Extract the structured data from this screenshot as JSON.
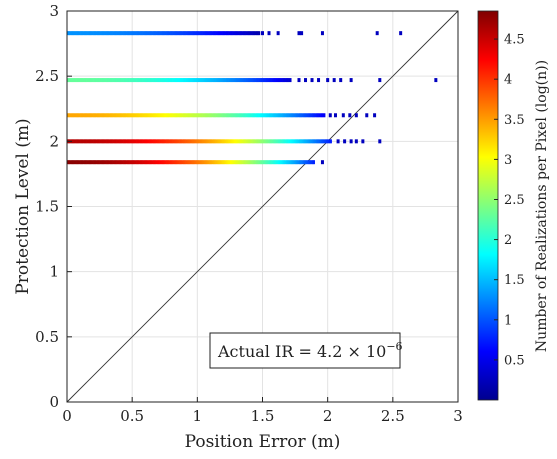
{
  "chart_data": {
    "type": "scatter",
    "xlabel": "Position Error (m)",
    "ylabel": "Protection Level (m)",
    "xlim": [
      0,
      3
    ],
    "ylim": [
      0,
      3
    ],
    "x_ticks": [
      "0",
      "0.5",
      "1",
      "1.5",
      "2",
      "2.5",
      "3"
    ],
    "y_ticks": [
      "0",
      "0.5",
      "1",
      "1.5",
      "2",
      "2.5",
      "3"
    ],
    "grid": true,
    "reference_line": {
      "x": [
        0,
        3
      ],
      "y": [
        0,
        3
      ]
    },
    "annotation": {
      "prefix": "Actual IR = 4.2 × 10",
      "exponent": "−6"
    },
    "colorbar": {
      "label": "Number of Realizations per Pixel (log(n))",
      "range": [
        0,
        4.85
      ],
      "ticks": [
        "0.5",
        "1",
        "1.5",
        "2",
        "2.5",
        "3",
        "3.5",
        "4",
        "4.5"
      ],
      "colormap": "jet"
    },
    "series": [
      {
        "protection_level": 2.83,
        "density_start": 1.3,
        "density_peak_x": 0.0,
        "dense_until": 1.48,
        "sparse_points": [
          1.5,
          1.55,
          1.62,
          1.78,
          1.8,
          1.96,
          2.38,
          2.56
        ]
      },
      {
        "protection_level": 2.47,
        "density_start": 2.3,
        "density_peak_x": 0.0,
        "dense_until": 1.72,
        "sparse_points": [
          1.78,
          1.83,
          1.88,
          1.93,
          2.0,
          2.05,
          2.1,
          2.18,
          2.4,
          2.83
        ]
      },
      {
        "protection_level": 2.2,
        "density_start": 3.45,
        "density_peak_x": 0.0,
        "dense_until": 1.98,
        "sparse_points": [
          2.02,
          2.06,
          2.12,
          2.17,
          2.22,
          2.3,
          2.36
        ]
      },
      {
        "protection_level": 2.0,
        "density_start": 4.6,
        "density_peak_x": 0.0,
        "dense_until": 2.03,
        "sparse_points": [
          2.08,
          2.13,
          2.18,
          2.22,
          2.27,
          2.4
        ]
      },
      {
        "protection_level": 1.84,
        "density_start": 4.8,
        "density_peak_x": 0.0,
        "dense_until": 1.9,
        "sparse_points": [
          1.96
        ]
      }
    ]
  }
}
